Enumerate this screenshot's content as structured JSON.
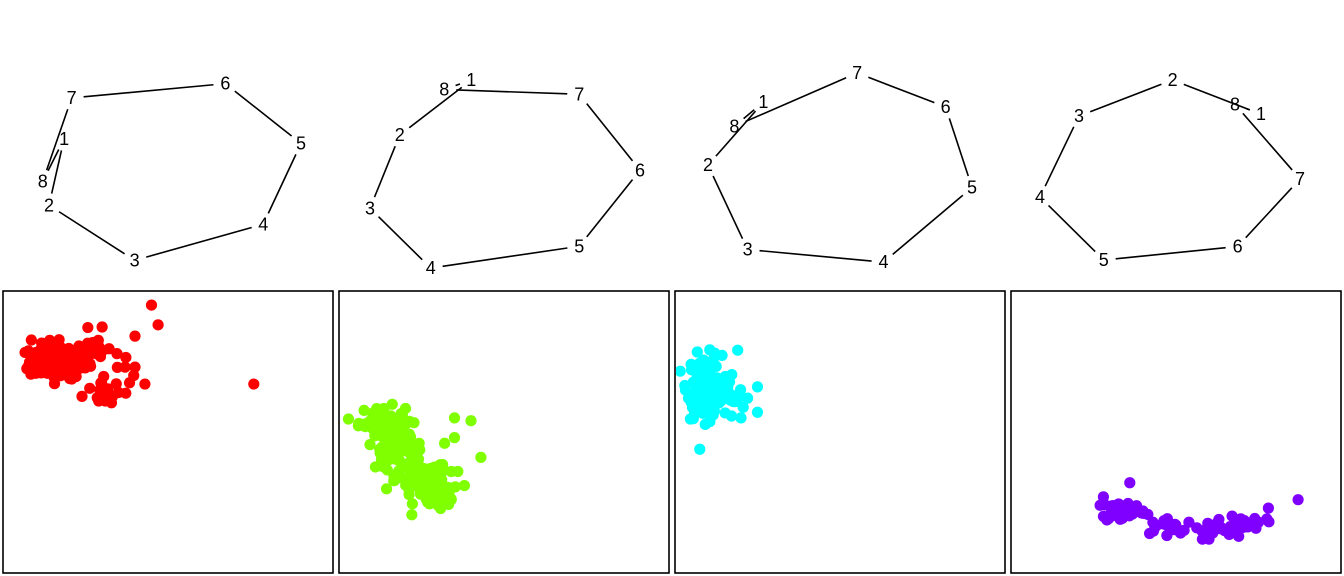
{
  "chart_data": [
    {
      "type": "scatter",
      "role": "polygon",
      "label_order": [
        "1",
        "2",
        "3",
        "4",
        "5",
        "6",
        "7",
        "8"
      ],
      "vertices": [
        {
          "label": "7",
          "x": -0.82,
          "y": 0.78
        },
        {
          "label": "6",
          "x": 0.4,
          "y": 0.93
        },
        {
          "label": "5",
          "x": 1.0,
          "y": 0.3
        },
        {
          "label": "4",
          "x": 0.7,
          "y": -0.55
        },
        {
          "label": "3",
          "x": -0.32,
          "y": -0.93
        },
        {
          "label": "2",
          "x": -1.0,
          "y": -0.35
        },
        {
          "label": "1",
          "x": -0.88,
          "y": 0.35
        },
        {
          "label": "8",
          "x": -1.05,
          "y": -0.1
        }
      ]
    },
    {
      "type": "scatter",
      "role": "polygon",
      "label_order": [
        "1",
        "2",
        "3",
        "4",
        "5",
        "6",
        "7",
        "8"
      ],
      "vertices": [
        {
          "label": "1",
          "x": -0.25,
          "y": 1.0
        },
        {
          "label": "7",
          "x": 0.55,
          "y": 0.85
        },
        {
          "label": "6",
          "x": 1.0,
          "y": 0.05
        },
        {
          "label": "5",
          "x": 0.55,
          "y": -0.75
        },
        {
          "label": "4",
          "x": -0.55,
          "y": -0.98
        },
        {
          "label": "3",
          "x": -1.0,
          "y": -0.35
        },
        {
          "label": "2",
          "x": -0.78,
          "y": 0.42
        },
        {
          "label": "8",
          "x": -0.45,
          "y": 0.9
        }
      ]
    },
    {
      "type": "scatter",
      "role": "polygon",
      "label_order": [
        "1",
        "2",
        "3",
        "4",
        "5",
        "6",
        "7",
        "8"
      ],
      "vertices": [
        {
          "label": "7",
          "x": 0.13,
          "y": 1.0
        },
        {
          "label": "6",
          "x": 0.8,
          "y": 0.65
        },
        {
          "label": "5",
          "x": 1.0,
          "y": -0.18
        },
        {
          "label": "4",
          "x": 0.33,
          "y": -0.95
        },
        {
          "label": "3",
          "x": -0.7,
          "y": -0.82
        },
        {
          "label": "2",
          "x": -1.0,
          "y": 0.05
        },
        {
          "label": "8",
          "x": -0.8,
          "y": 0.45
        },
        {
          "label": "1",
          "x": -0.58,
          "y": 0.7
        }
      ]
    },
    {
      "type": "scatter",
      "role": "polygon",
      "label_order": [
        "1",
        "2",
        "3",
        "4",
        "5",
        "6",
        "7",
        "8"
      ],
      "vertices": [
        {
          "label": "2",
          "x": 0.02,
          "y": 1.0
        },
        {
          "label": "8",
          "x": 0.5,
          "y": 0.73
        },
        {
          "label": "1",
          "x": 0.7,
          "y": 0.62
        },
        {
          "label": "7",
          "x": 1.0,
          "y": -0.1
        },
        {
          "label": "6",
          "x": 0.52,
          "y": -0.85
        },
        {
          "label": "5",
          "x": -0.51,
          "y": -1.0
        },
        {
          "label": "4",
          "x": -1.0,
          "y": -0.3
        },
        {
          "label": "3",
          "x": -0.7,
          "y": 0.6
        }
      ]
    },
    {
      "type": "scatter",
      "color": "#ff0000",
      "xlim": [
        0,
        100
      ],
      "ylim": [
        0,
        100
      ],
      "clusters": [
        {
          "cx": 17,
          "cy": 75,
          "sx": 4.5,
          "sy": 3,
          "n": 170
        },
        {
          "cx": 26,
          "cy": 78,
          "sx": 5,
          "sy": 4,
          "n": 35
        },
        {
          "cx": 30,
          "cy": 65,
          "sx": 4,
          "sy": 3,
          "n": 14
        }
      ],
      "points": [
        [
          45,
          95
        ],
        [
          47,
          88
        ],
        [
          40,
          84
        ],
        [
          37,
          73
        ],
        [
          40,
          73
        ],
        [
          43,
          67
        ],
        [
          76,
          67
        ],
        [
          31,
          61
        ],
        [
          29,
          61
        ],
        [
          35,
          64
        ]
      ]
    },
    {
      "type": "scatter",
      "color": "#7fff00",
      "xlim": [
        0,
        100
      ],
      "ylim": [
        0,
        100
      ],
      "clusters": [
        {
          "cx": 13,
          "cy": 54,
          "sx": 3.5,
          "sy": 2.5,
          "n": 50
        },
        {
          "cx": 18,
          "cy": 45,
          "sx": 3.5,
          "sy": 4,
          "n": 80
        },
        {
          "cx": 25,
          "cy": 33,
          "sx": 4,
          "sy": 3.5,
          "n": 70
        },
        {
          "cx": 30,
          "cy": 27,
          "sx": 3.5,
          "sy": 2.5,
          "n": 30
        }
      ],
      "points": [
        [
          35,
          55
        ],
        [
          40,
          54
        ],
        [
          32,
          46
        ],
        [
          35,
          48
        ],
        [
          43,
          41
        ],
        [
          34,
          36
        ],
        [
          36,
          36
        ],
        [
          38,
          31
        ],
        [
          34,
          26
        ],
        [
          30,
          24
        ]
      ]
    },
    {
      "type": "scatter",
      "color": "#00ffff",
      "xlim": [
        0,
        100
      ],
      "ylim": [
        0,
        100
      ],
      "clusters": [
        {
          "cx": 9,
          "cy": 66,
          "sx": 2.6,
          "sy": 5.5,
          "n": 130
        },
        {
          "cx": 15,
          "cy": 62,
          "sx": 3,
          "sy": 3.5,
          "n": 30
        }
      ],
      "points": [
        [
          19,
          79
        ],
        [
          25,
          66
        ],
        [
          22,
          62
        ],
        [
          25,
          57
        ],
        [
          20,
          55
        ],
        [
          12,
          78
        ]
      ]
    },
    {
      "type": "scatter",
      "color": "#7f00ff",
      "xlim": [
        0,
        100
      ],
      "ylim": [
        0,
        100
      ],
      "clusters": [
        {
          "cx": 34,
          "cy": 22,
          "sx": 3.5,
          "sy": 2,
          "n": 50
        },
        {
          "cx": 48,
          "cy": 17,
          "sx": 4,
          "sy": 1.3,
          "n": 15
        },
        {
          "cx": 60,
          "cy": 15,
          "sx": 4,
          "sy": 1.4,
          "n": 20
        },
        {
          "cx": 71,
          "cy": 18,
          "sx": 3,
          "sy": 1.5,
          "n": 20
        }
      ],
      "points": [
        [
          87,
          26
        ],
        [
          78,
          23
        ],
        [
          28,
          27
        ],
        [
          27,
          24
        ],
        [
          36,
          32
        ],
        [
          43,
          18
        ],
        [
          58,
          12
        ],
        [
          60,
          12
        ],
        [
          69,
          13
        ],
        [
          42,
          14
        ],
        [
          75,
          18
        ],
        [
          63,
          19
        ]
      ]
    }
  ]
}
